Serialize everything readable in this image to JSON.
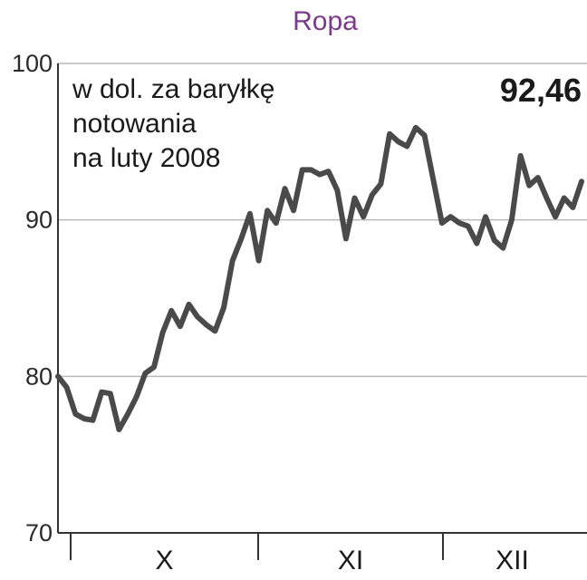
{
  "chart_data": {
    "type": "line",
    "title": "Ropa",
    "annotation_lines": [
      "w dol. za baryłkę",
      "notowania",
      "na luty 2008"
    ],
    "last_value_label": "92,46",
    "ylim": [
      70,
      100
    ],
    "yticks": [
      70,
      80,
      90,
      100
    ],
    "yticks_labels": [
      "70",
      "80",
      "90",
      "100"
    ],
    "months": [
      "X",
      "XI",
      "XII"
    ],
    "grid": true,
    "line_color": "#4a4a4a",
    "grid_color": "#b8b8b8",
    "title_color": "#7b3a8c",
    "series": [
      {
        "values": [
          80.0,
          79.3,
          77.6,
          77.3,
          77.2,
          79.0,
          78.9,
          76.6,
          77.6,
          78.7,
          80.2,
          80.6,
          82.8,
          84.2,
          83.2,
          84.6,
          83.8,
          83.3,
          82.9,
          84.4,
          87.4,
          88.8,
          90.4,
          87.4,
          90.6,
          89.8,
          92.0,
          90.6,
          93.2,
          93.2,
          92.9,
          93.1,
          91.9,
          88.8,
          91.4,
          90.2,
          91.6,
          92.3,
          95.5,
          95.0,
          94.7,
          95.9,
          95.4,
          92.6,
          89.8,
          90.2,
          89.8,
          89.6,
          88.5,
          90.2,
          88.7,
          88.2,
          90.0,
          94.1,
          92.2,
          92.7,
          91.4,
          90.2,
          91.4,
          90.8,
          92.46
        ]
      }
    ],
    "month_boundaries_index": [
      0,
      26,
      50,
      68
    ]
  }
}
